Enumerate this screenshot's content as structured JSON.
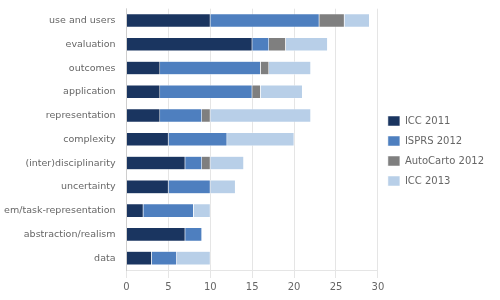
{
  "chart_data": {
    "type": "bar",
    "orientation": "horizontal",
    "stacked": true,
    "categories": [
      "use and users",
      "evaluation",
      "outcomes",
      "application",
      "representation",
      "complexity",
      "(inter)disciplinarity",
      "uncertainty",
      "match problem/task-representation",
      "abstraction/realism",
      "data"
    ],
    "series": [
      {
        "name": "ICC 2011",
        "color": "#1a3560",
        "values": [
          10,
          15,
          4,
          4,
          4,
          5,
          7,
          5,
          2,
          7,
          3
        ]
      },
      {
        "name": "ISPRS 2012",
        "color": "#4e7fbf",
        "values": [
          13,
          2,
          12,
          11,
          5,
          7,
          2,
          5,
          6,
          2,
          3
        ]
      },
      {
        "name": "AutoCarto 2012",
        "color": "#7f7f7f",
        "values": [
          3,
          2,
          1,
          1,
          1,
          0,
          1,
          0,
          0,
          0,
          0
        ]
      },
      {
        "name": "ICC 2013",
        "color": "#b8cfe8",
        "values": [
          3,
          5,
          5,
          5,
          12,
          8,
          4,
          3,
          2,
          0,
          4
        ]
      }
    ],
    "xlim": [
      0,
      30
    ],
    "xticks": [
      0,
      5,
      10,
      15,
      20,
      25,
      30
    ],
    "grid": true,
    "legend": "right"
  }
}
